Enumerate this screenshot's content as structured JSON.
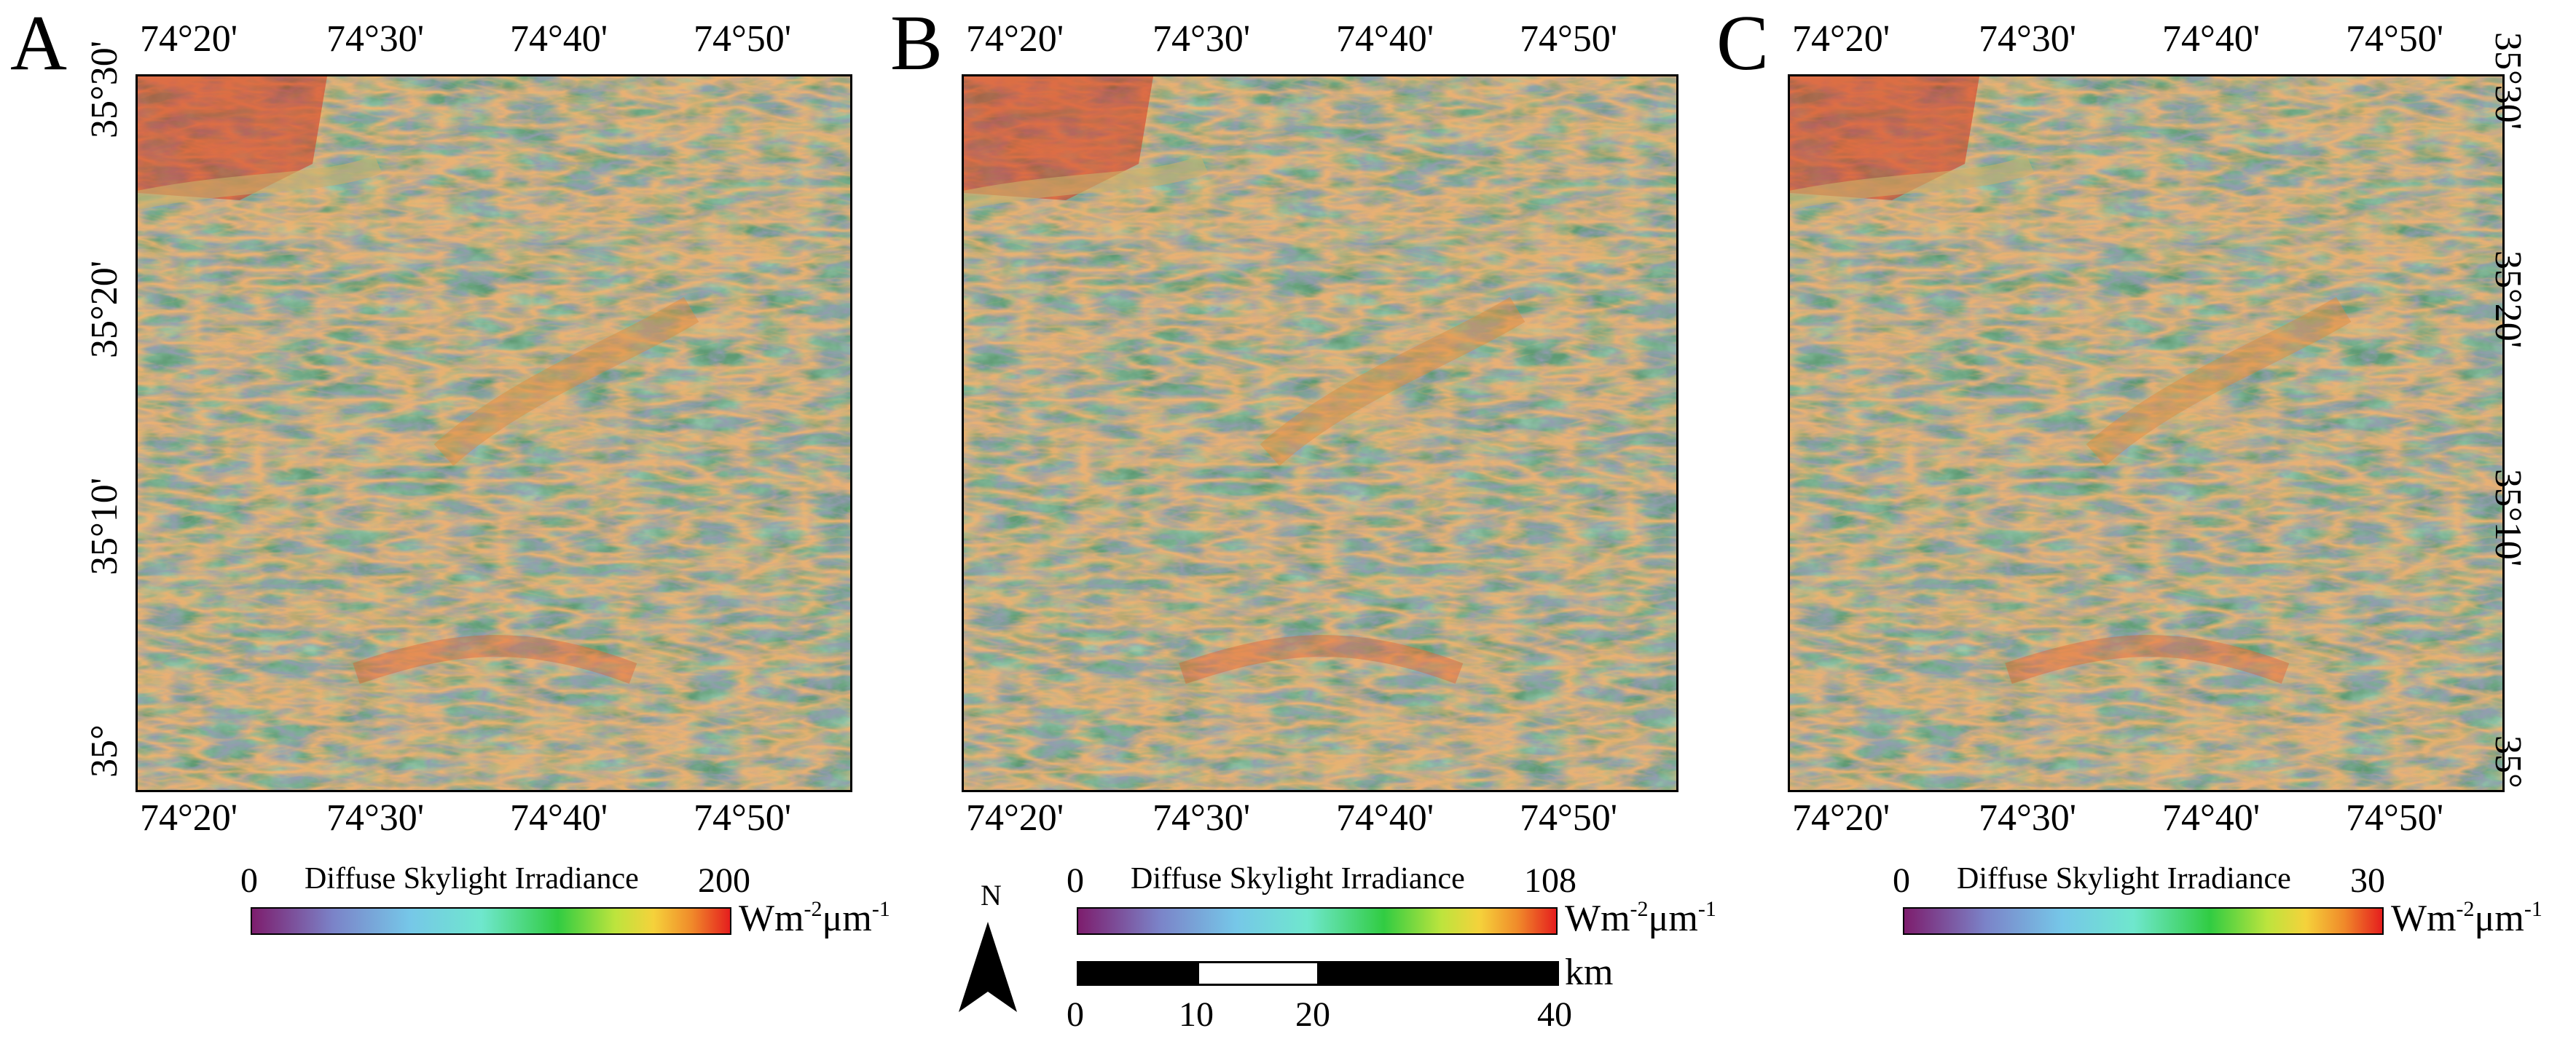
{
  "panels": [
    {
      "letter": "A",
      "top_lon_labels": [
        "74°20'",
        "74°30'",
        "74°40'",
        "74°50'"
      ],
      "bottom_lon_labels": [
        "74°20'",
        "74°30'",
        "74°40'",
        "74°50'"
      ],
      "lat_labels": [
        "35°30'",
        "35°20'",
        "35°10'",
        "35°"
      ],
      "lat_side": "left",
      "legend": {
        "title": "Diffuse Skylight Irradiance",
        "min": "0",
        "max": "200",
        "unit_base": "Wm",
        "unit_exp1": "-2",
        "unit_mid": "μm",
        "unit_exp2": "-1"
      }
    },
    {
      "letter": "B",
      "top_lon_labels": [
        "74°20'",
        "74°30'",
        "74°40'",
        "74°50'"
      ],
      "bottom_lon_labels": [
        "74°20'",
        "74°30'",
        "74°40'",
        "74°50'"
      ],
      "lat_labels": [],
      "lat_side": "none",
      "legend": {
        "title": "Diffuse Skylight Irradiance",
        "min": "0",
        "max": "108",
        "unit_base": "Wm",
        "unit_exp1": "-2",
        "unit_mid": "μm",
        "unit_exp2": "-1"
      }
    },
    {
      "letter": "C",
      "top_lon_labels": [
        "74°20'",
        "74°30'",
        "74°40'",
        "74°50'"
      ],
      "bottom_lon_labels": [
        "74°20'",
        "74°30'",
        "74°40'",
        "74°50'"
      ],
      "lat_labels": [
        "35°30'",
        "35°20'",
        "35°10'",
        "35°"
      ],
      "lat_side": "right",
      "legend": {
        "title": "Diffuse Skylight Irradiance",
        "min": "0",
        "max": "30",
        "unit_base": "Wm",
        "unit_exp1": "-2",
        "unit_mid": "μm",
        "unit_exp2": "-1"
      }
    }
  ],
  "north_arrow": {
    "label": "N"
  },
  "scale_bar": {
    "unit": "km",
    "labels": [
      "0",
      "10",
      "20",
      "40"
    ]
  },
  "colors": {
    "ramp": [
      "#7d1d6d",
      "#7b83c8",
      "#76c7e8",
      "#6fe7cd",
      "#31cc42",
      "#bde43d",
      "#f5d23b",
      "#f08a2a",
      "#e51e1e"
    ]
  }
}
